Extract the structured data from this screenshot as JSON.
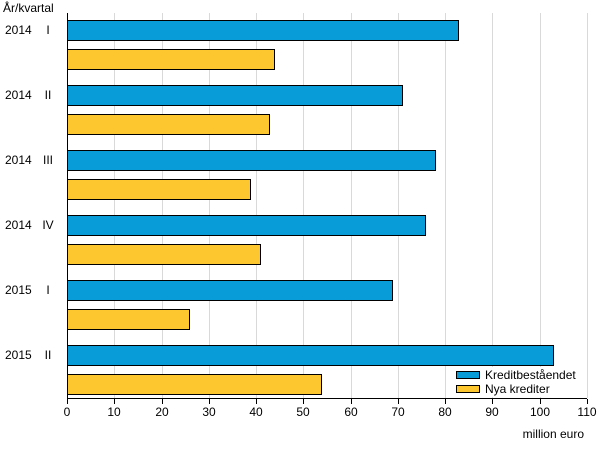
{
  "chart_data": {
    "type": "bar",
    "orientation": "horizontal",
    "title": "År/kvartal",
    "xlabel": "million euro",
    "xlim": [
      0,
      110
    ],
    "xticks": [
      0,
      10,
      20,
      30,
      40,
      50,
      60,
      70,
      80,
      90,
      100,
      110
    ],
    "grid": true,
    "legend_position": "inside-bottom-right",
    "categories": [
      "2014 I",
      "2014 II",
      "2014 III",
      "2014 IV",
      "2015 I",
      "2015 II"
    ],
    "series": [
      {
        "name": "Kreditbeståendet",
        "color": "#089dd9",
        "values": [
          83,
          71,
          78,
          76,
          69,
          103
        ]
      },
      {
        "name": "Nya krediter",
        "color": "#fdc72f",
        "values": [
          44,
          43,
          39,
          41,
          26,
          54
        ]
      }
    ],
    "colors": {
      "grid": "#d9d9d9",
      "axis": "#000000",
      "bar_border": "#000000"
    }
  }
}
